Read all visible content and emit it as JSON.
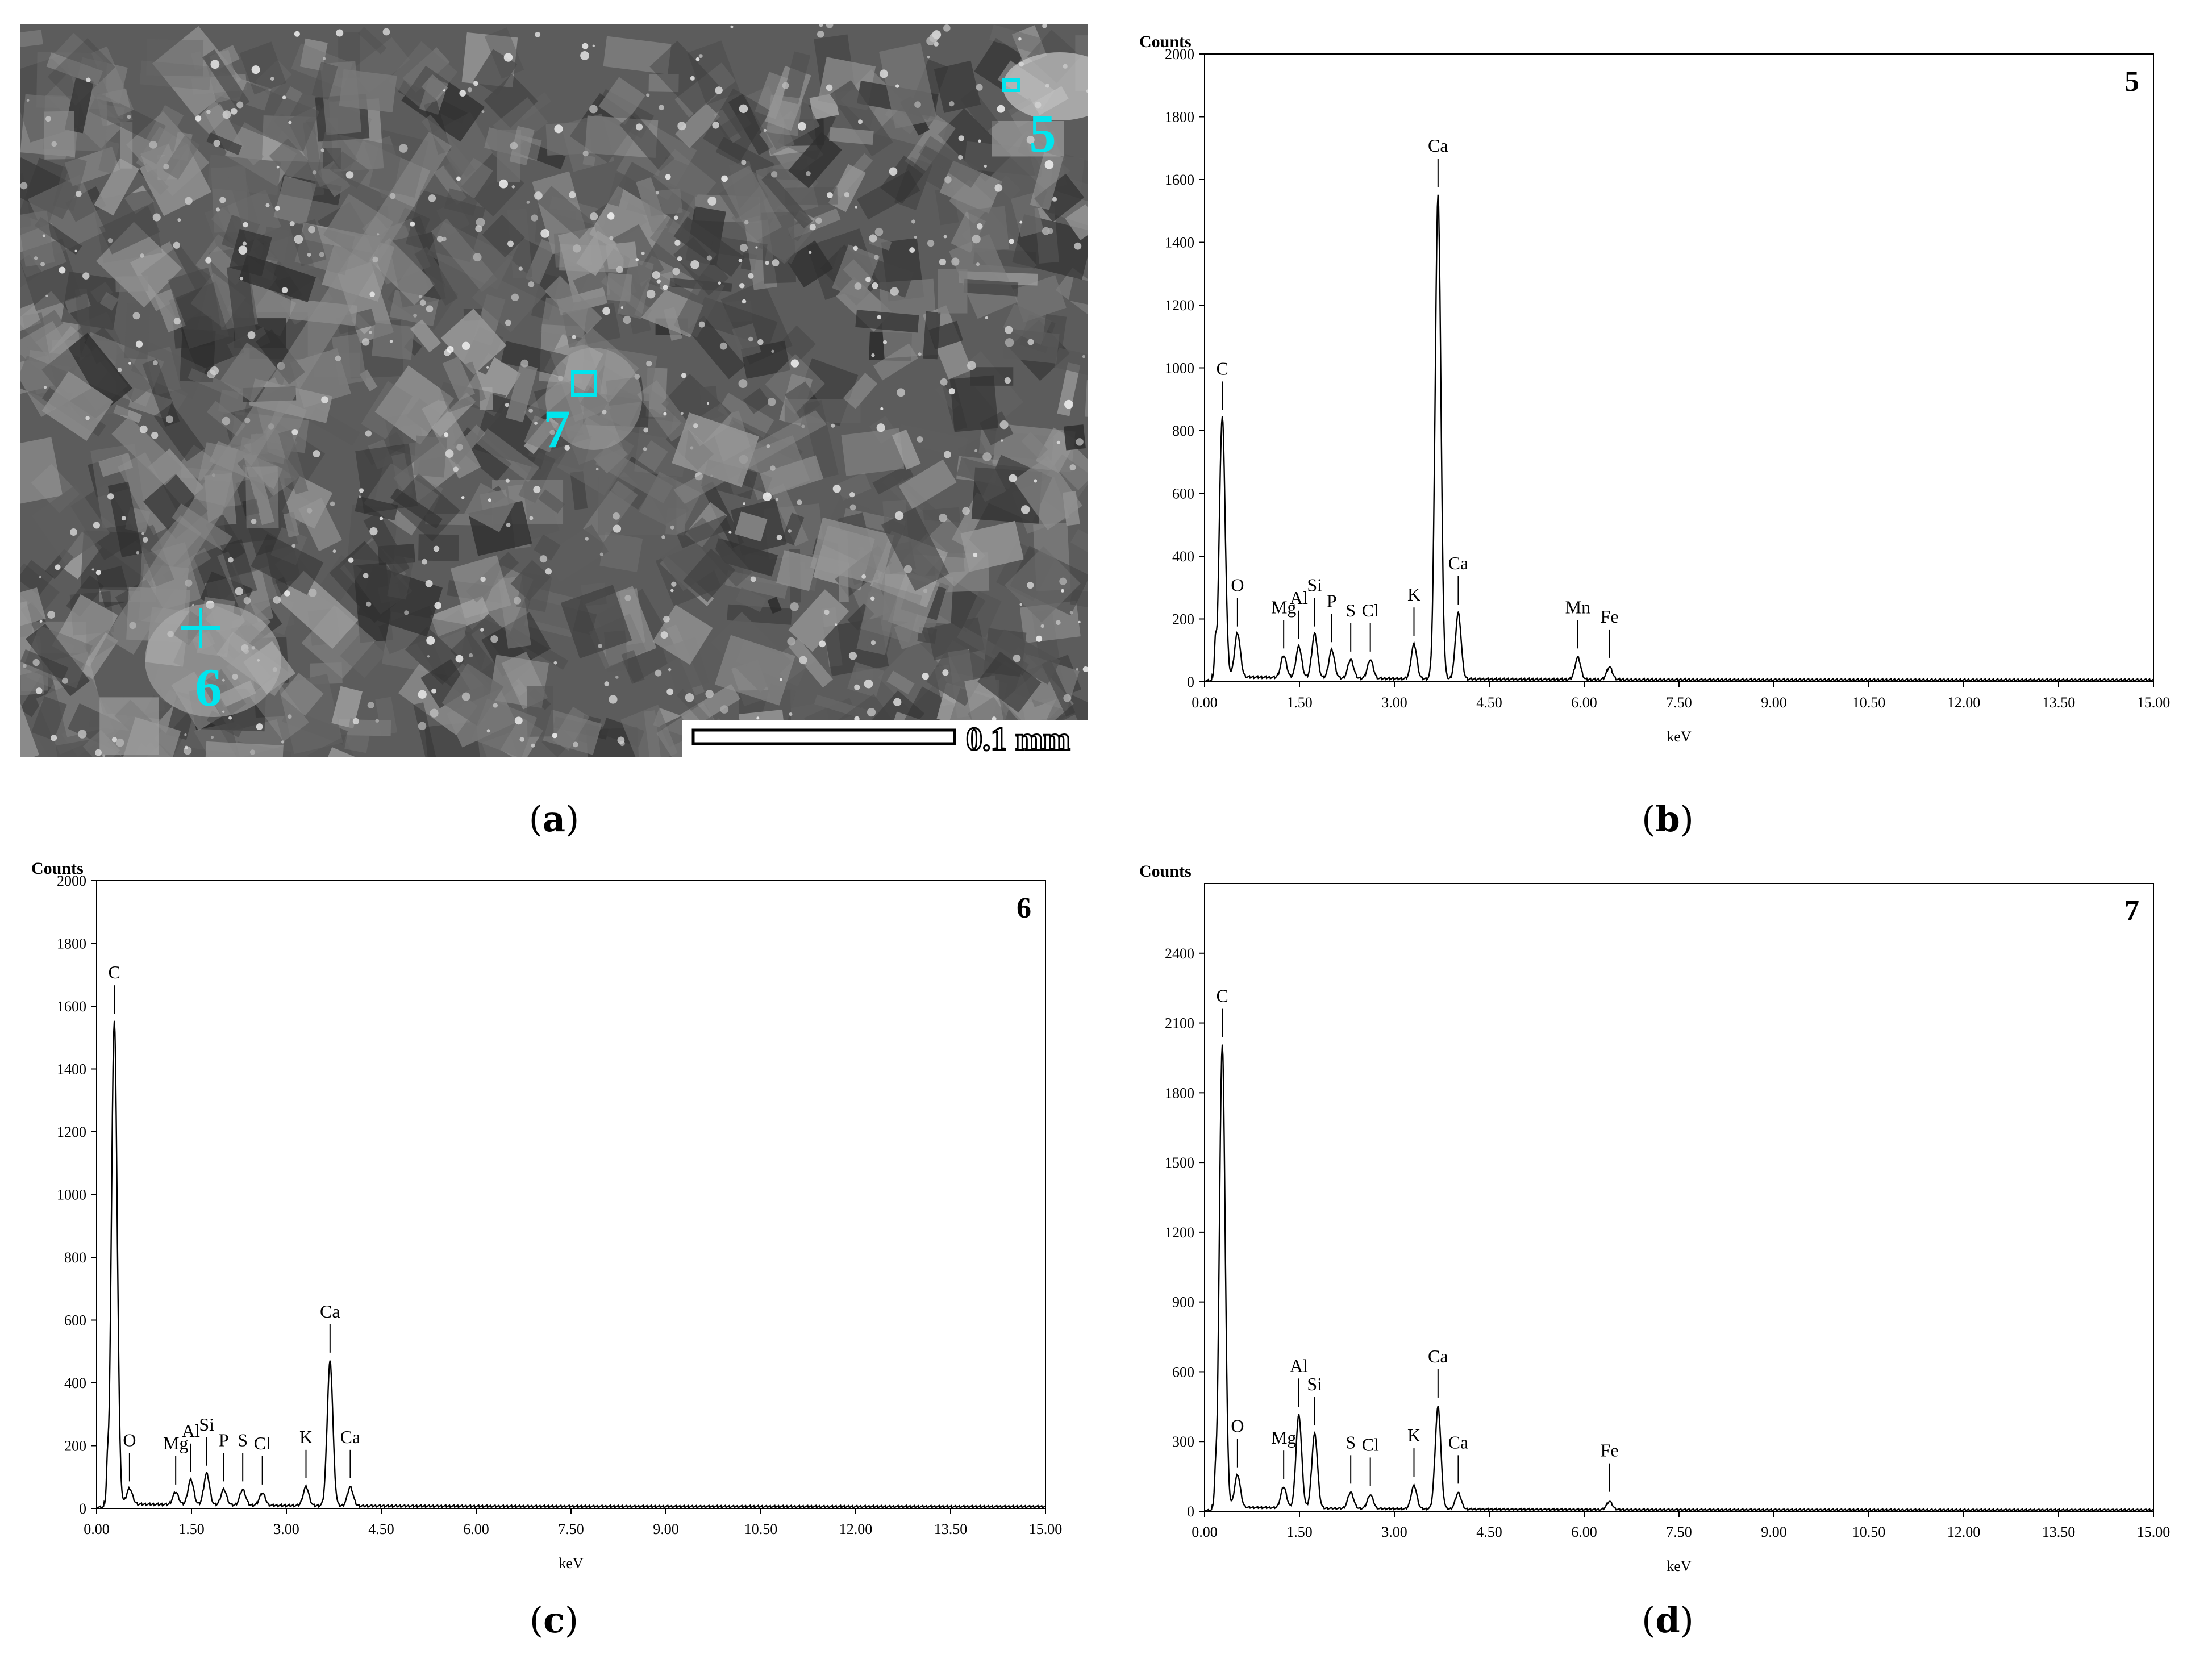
{
  "sem_image": {
    "scale_bar_label": "0.1 mm",
    "markers": [
      {
        "label": "5",
        "shape": "square"
      },
      {
        "label": "7",
        "shape": "square"
      },
      {
        "label": "6",
        "shape": "cross"
      }
    ],
    "marker_color": "#00e5ee"
  },
  "captions": {
    "a": "a",
    "b": "b",
    "c": "c",
    "d": "d"
  },
  "chart_data": [
    {
      "id": "b",
      "type": "line",
      "spot_label": "5",
      "ylabel": "Counts",
      "xlabel": "keV",
      "xlim": [
        0,
        15
      ],
      "ylim": [
        0,
        2000
      ],
      "xticks": [
        "0.00",
        "1.50",
        "3.00",
        "4.50",
        "6.00",
        "7.50",
        "9.00",
        "10.50",
        "12.00",
        "13.50",
        "15.00"
      ],
      "yticks": [
        "0",
        "200",
        "400",
        "600",
        "800",
        "1000",
        "1200",
        "1400",
        "1600",
        "1800",
        "2000"
      ],
      "baseline": 12,
      "peaks": [
        {
          "label": "C",
          "x": 0.28,
          "y": 830
        },
        {
          "label": "O",
          "x": 0.52,
          "y": 140
        },
        {
          "label": "Mg",
          "x": 1.25,
          "y": 70
        },
        {
          "label": "Al",
          "x": 1.49,
          "y": 100
        },
        {
          "label": "Si",
          "x": 1.74,
          "y": 140
        },
        {
          "label": "P",
          "x": 2.01,
          "y": 90
        },
        {
          "label": "S",
          "x": 2.31,
          "y": 60
        },
        {
          "label": "Cl",
          "x": 2.62,
          "y": 60
        },
        {
          "label": "K",
          "x": 3.31,
          "y": 110
        },
        {
          "label": "Ca",
          "x": 3.69,
          "y": 1540
        },
        {
          "label": "Ca",
          "x": 4.01,
          "y": 210
        },
        {
          "label": "Mn",
          "x": 5.9,
          "y": 70
        },
        {
          "label": "Fe",
          "x": 6.4,
          "y": 40
        }
      ]
    },
    {
      "id": "c",
      "type": "line",
      "spot_label": "6",
      "ylabel": "Counts",
      "xlabel": "keV",
      "xlim": [
        0,
        15
      ],
      "ylim": [
        0,
        2000
      ],
      "xticks": [
        "0.00",
        "1.50",
        "3.00",
        "4.50",
        "6.00",
        "7.50",
        "9.00",
        "10.50",
        "12.00",
        "13.50",
        "15.00"
      ],
      "yticks": [
        "0",
        "200",
        "400",
        "600",
        "800",
        "1000",
        "1200",
        "1400",
        "1600",
        "1800",
        "2000"
      ],
      "baseline": 10,
      "peaks": [
        {
          "label": "C",
          "x": 0.28,
          "y": 1540
        },
        {
          "label": "O",
          "x": 0.52,
          "y": 50
        },
        {
          "label": "Mg",
          "x": 1.25,
          "y": 40
        },
        {
          "label": "Al",
          "x": 1.49,
          "y": 80
        },
        {
          "label": "Si",
          "x": 1.74,
          "y": 100
        },
        {
          "label": "P",
          "x": 2.01,
          "y": 50
        },
        {
          "label": "S",
          "x": 2.31,
          "y": 50
        },
        {
          "label": "Cl",
          "x": 2.62,
          "y": 40
        },
        {
          "label": "K",
          "x": 3.31,
          "y": 60
        },
        {
          "label": "Ca",
          "x": 3.69,
          "y": 460
        },
        {
          "label": "Ca",
          "x": 4.01,
          "y": 60
        }
      ]
    },
    {
      "id": "d",
      "type": "line",
      "spot_label": "7",
      "ylabel": "Counts",
      "xlabel": "keV",
      "xlim": [
        0,
        15
      ],
      "ylim": [
        0,
        2700
      ],
      "xticks": [
        "0.00",
        "1.50",
        "3.00",
        "4.50",
        "6.00",
        "7.50",
        "9.00",
        "10.50",
        "12.00",
        "13.50",
        "15.00"
      ],
      "yticks": [
        "0",
        "300",
        "600",
        "900",
        "1200",
        "1500",
        "1800",
        "2100",
        "2400"
      ],
      "baseline": 14,
      "peaks": [
        {
          "label": "C",
          "x": 0.28,
          "y": 1990
        },
        {
          "label": "O",
          "x": 0.52,
          "y": 140
        },
        {
          "label": "Mg",
          "x": 1.25,
          "y": 90
        },
        {
          "label": "Al",
          "x": 1.49,
          "y": 400
        },
        {
          "label": "Si",
          "x": 1.74,
          "y": 320
        },
        {
          "label": "S",
          "x": 2.31,
          "y": 70
        },
        {
          "label": "Cl",
          "x": 2.62,
          "y": 60
        },
        {
          "label": "K",
          "x": 3.31,
          "y": 100
        },
        {
          "label": "Ca",
          "x": 3.69,
          "y": 440
        },
        {
          "label": "Ca",
          "x": 4.01,
          "y": 70
        },
        {
          "label": "Fe",
          "x": 6.4,
          "y": 35
        }
      ]
    }
  ]
}
